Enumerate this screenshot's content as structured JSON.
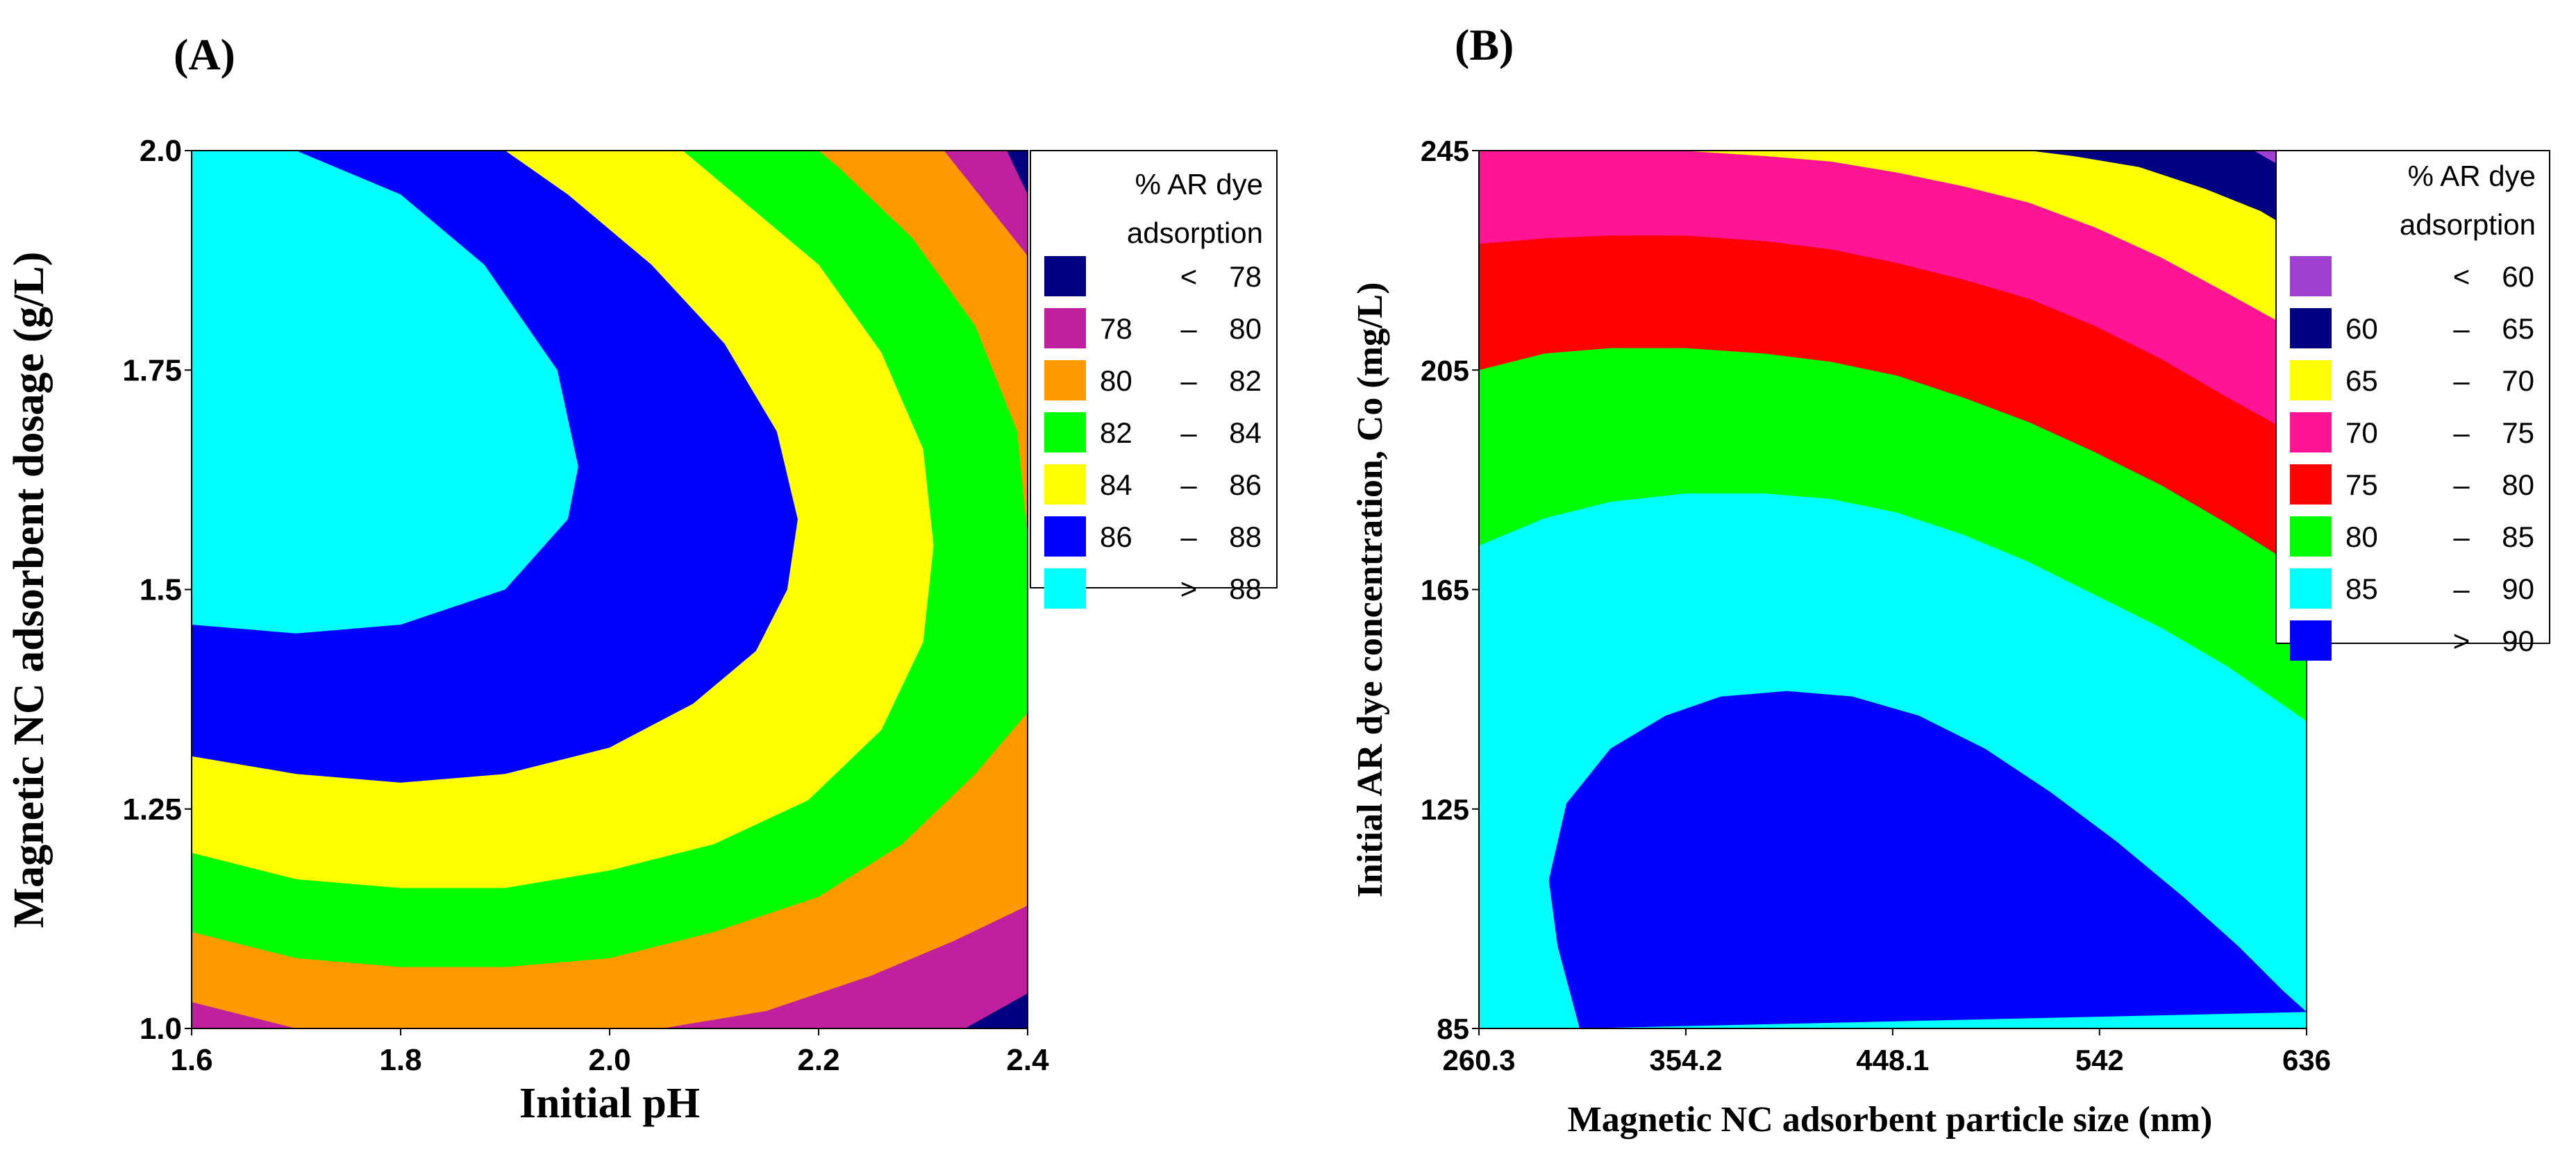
{
  "panels": {
    "a_label": "(A)",
    "b_label": "(B)"
  },
  "chart_data": [
    {
      "type": "heatmap",
      "subtype": "contour",
      "xlabel": "Initial pH",
      "ylabel": "Magnetic NC adsorbent dosage (g/L)",
      "xlim": [
        1.6,
        2.4
      ],
      "ylim": [
        1.0,
        2.0
      ],
      "x_ticks": [
        "1.6",
        "1.8",
        "2.0",
        "2.2",
        "2.4"
      ],
      "y_ticks": [
        "1.0",
        "1.25",
        "1.5",
        "1.75",
        "2.0"
      ],
      "legend_title": [
        "% AR dye",
        "adsorption"
      ],
      "legend_position": "right",
      "bands": [
        {
          "range": "< 78",
          "lo_label": "",
          "sep": "<",
          "hi_label": "78",
          "color": "#000080"
        },
        {
          "range": "78 – 80",
          "lo_label": "78",
          "sep": "–",
          "hi_label": "80",
          "color": "#C020A0"
        },
        {
          "range": "80 – 82",
          "lo_label": "80",
          "sep": "–",
          "hi_label": "82",
          "color": "#FF9900"
        },
        {
          "range": "82 – 84",
          "lo_label": "82",
          "sep": "–",
          "hi_label": "84",
          "color": "#00FF00"
        },
        {
          "range": "84 – 86",
          "lo_label": "84",
          "sep": "–",
          "hi_label": "86",
          "color": "#FFFF00"
        },
        {
          "range": "86 – 88",
          "lo_label": "86",
          "sep": "–",
          "hi_label": "88",
          "color": "#0000FF"
        },
        {
          "range": "> 88",
          "lo_label": "",
          "sep": ">",
          "hi_label": "88",
          "color": "#00FFFF"
        }
      ],
      "contours": [
        {
          "level": 88,
          "points": [
            [
              1.6,
              1.46
            ],
            [
              1.7,
              1.45
            ],
            [
              1.8,
              1.46
            ],
            [
              1.9,
              1.5
            ],
            [
              1.96,
              1.58
            ],
            [
              1.97,
              1.64
            ],
            [
              1.95,
              1.75
            ],
            [
              1.88,
              1.87
            ],
            [
              1.8,
              1.95
            ],
            [
              1.7,
              2.0
            ]
          ]
        },
        {
          "level": 86,
          "points": [
            [
              1.6,
              1.31
            ],
            [
              1.7,
              1.29
            ],
            [
              1.8,
              1.28
            ],
            [
              1.9,
              1.29
            ],
            [
              2.0,
              1.32
            ],
            [
              2.08,
              1.37
            ],
            [
              2.14,
              1.43
            ],
            [
              2.17,
              1.5
            ],
            [
              2.18,
              1.58
            ],
            [
              2.16,
              1.68
            ],
            [
              2.11,
              1.78
            ],
            [
              2.04,
              1.87
            ],
            [
              1.96,
              1.95
            ],
            [
              1.9,
              2.0
            ]
          ]
        },
        {
          "level": 84,
          "points": [
            [
              1.6,
              1.2
            ],
            [
              1.7,
              1.17
            ],
            [
              1.8,
              1.16
            ],
            [
              1.9,
              1.16
            ],
            [
              2.0,
              1.18
            ],
            [
              2.1,
              1.21
            ],
            [
              2.19,
              1.26
            ],
            [
              2.26,
              1.34
            ],
            [
              2.3,
              1.44
            ],
            [
              2.31,
              1.55
            ],
            [
              2.3,
              1.66
            ],
            [
              2.26,
              1.77
            ],
            [
              2.2,
              1.87
            ],
            [
              2.12,
              1.95
            ],
            [
              2.07,
              2.0
            ]
          ]
        },
        {
          "level": 82,
          "points": [
            [
              1.6,
              1.11
            ],
            [
              1.7,
              1.08
            ],
            [
              1.8,
              1.07
            ],
            [
              1.9,
              1.07
            ],
            [
              2.0,
              1.08
            ],
            [
              2.1,
              1.11
            ],
            [
              2.2,
              1.15
            ],
            [
              2.28,
              1.21
            ],
            [
              2.35,
              1.29
            ],
            [
              2.4,
              1.36
            ]
          ]
        },
        {
          "level": 82,
          "points": [
            [
              2.4,
              1.56
            ],
            [
              2.39,
              1.68
            ],
            [
              2.35,
              1.8
            ],
            [
              2.29,
              1.9
            ],
            [
              2.22,
              1.98
            ],
            [
              2.2,
              2.0
            ]
          ]
        },
        {
          "level": 80,
          "points": [
            [
              1.6,
              1.03
            ],
            [
              1.7,
              1.0
            ]
          ]
        },
        {
          "level": 80,
          "points": [
            [
              2.05,
              1.0
            ],
            [
              2.15,
              1.02
            ],
            [
              2.25,
              1.06
            ],
            [
              2.33,
              1.1
            ],
            [
              2.4,
              1.14
            ]
          ]
        },
        {
          "level": 80,
          "points": [
            [
              2.4,
              1.88
            ],
            [
              2.36,
              1.94
            ],
            [
              2.32,
              2.0
            ]
          ]
        },
        {
          "level": 78,
          "points": [
            [
              2.34,
              1.0
            ],
            [
              2.37,
              1.02
            ],
            [
              2.4,
              1.04
            ]
          ]
        },
        {
          "level": 78,
          "points": [
            [
              2.4,
              1.95
            ],
            [
              2.38,
              2.0
            ]
          ]
        }
      ]
    },
    {
      "type": "heatmap",
      "subtype": "contour",
      "xlabel": "Magnetic NC adsorbent particle size (nm)",
      "ylabel": "Initial AR dye concentration, Co (mg/L)",
      "xlim": [
        260.3,
        636
      ],
      "ylim": [
        85,
        245
      ],
      "x_ticks": [
        "260.3",
        "354.2",
        "448.1",
        "542",
        "636"
      ],
      "y_ticks": [
        "85",
        "125",
        "165",
        "205",
        "245"
      ],
      "legend_title": [
        "% AR dye",
        "adsorption"
      ],
      "legend_position": "right",
      "bands": [
        {
          "range": "< 60",
          "lo_label": "",
          "sep": "<",
          "hi_label": "60",
          "color": "#A040D0"
        },
        {
          "range": "60 – 65",
          "lo_label": "60",
          "sep": "–",
          "hi_label": "65",
          "color": "#000080"
        },
        {
          "range": "65 – 70",
          "lo_label": "65",
          "sep": "–",
          "hi_label": "70",
          "color": "#FFFF00"
        },
        {
          "range": "70 – 75",
          "lo_label": "70",
          "sep": "–",
          "hi_label": "75",
          "color": "#FF1493"
        },
        {
          "range": "75 – 80",
          "lo_label": "75",
          "sep": "–",
          "hi_label": "80",
          "color": "#FF0000"
        },
        {
          "range": "80 – 85",
          "lo_label": "80",
          "sep": "–",
          "hi_label": "85",
          "color": "#00FF00"
        },
        {
          "range": "85 – 90",
          "lo_label": "85",
          "sep": "–",
          "hi_label": "90",
          "color": "#00FFFF"
        },
        {
          "range": "> 90",
          "lo_label": "",
          "sep": ">",
          "hi_label": "90",
          "color": "#0000FF"
        }
      ],
      "contours": [
        {
          "level": 90,
          "points": [
            [
              306,
              85
            ],
            [
              296,
              100
            ],
            [
              292,
              112
            ],
            [
              300,
              126
            ],
            [
              320,
              136
            ],
            [
              345,
              142
            ],
            [
              370,
              145.5
            ],
            [
              400,
              146.5
            ],
            [
              430,
              145.5
            ],
            [
              460,
              142
            ],
            [
              490,
              136
            ],
            [
              520,
              128
            ],
            [
              550,
              119
            ],
            [
              580,
              109
            ],
            [
              605,
              100
            ],
            [
              625,
              92
            ],
            [
              636,
              88
            ]
          ]
        },
        {
          "level": 85,
          "points": [
            [
              260.3,
              173
            ],
            [
              290,
              178
            ],
            [
              320,
              181
            ],
            [
              354,
              182.5
            ],
            [
              390,
              182.5
            ],
            [
              420,
              181.5
            ],
            [
              450,
              179
            ],
            [
              480,
              175
            ],
            [
              510,
              170
            ],
            [
              540,
              164
            ],
            [
              570,
              158
            ],
            [
              600,
              151
            ],
            [
              636,
              141
            ]
          ]
        },
        {
          "level": 80,
          "points": [
            [
              260.3,
              205
            ],
            [
              290,
              208
            ],
            [
              320,
              209
            ],
            [
              354,
              209
            ],
            [
              390,
              208
            ],
            [
              420,
              206.5
            ],
            [
              450,
              204
            ],
            [
              480,
              200
            ],
            [
              510,
              195.5
            ],
            [
              540,
              190
            ],
            [
              570,
              184
            ],
            [
              600,
              177
            ],
            [
              636,
              168
            ]
          ]
        },
        {
          "level": 75,
          "points": [
            [
              260.3,
              228
            ],
            [
              290,
              229
            ],
            [
              320,
              229.5
            ],
            [
              354,
              229.5
            ],
            [
              390,
              228.5
            ],
            [
              420,
              227
            ],
            [
              450,
              224.5
            ],
            [
              480,
              221.5
            ],
            [
              510,
              218
            ],
            [
              540,
              213
            ],
            [
              570,
              207
            ],
            [
              600,
              200
            ],
            [
              636,
              192
            ]
          ]
        },
        {
          "level": 70,
          "points": [
            [
              352,
              245
            ],
            [
              390,
              244
            ],
            [
              420,
              243
            ],
            [
              450,
              241
            ],
            [
              480,
              238.5
            ],
            [
              510,
              235.5
            ],
            [
              540,
              231
            ],
            [
              570,
              225.5
            ],
            [
              600,
              219
            ],
            [
              636,
              211
            ]
          ]
        },
        {
          "level": 65,
          "points": [
            [
              510,
              245
            ],
            [
              530,
              244
            ],
            [
              560,
              242
            ],
            [
              590,
              238
            ],
            [
              615,
              234
            ],
            [
              636,
              229
            ]
          ]
        },
        {
          "level": 60,
          "points": [
            [
              612,
              245
            ],
            [
              625,
              242
            ],
            [
              636,
              240
            ]
          ]
        }
      ]
    }
  ]
}
